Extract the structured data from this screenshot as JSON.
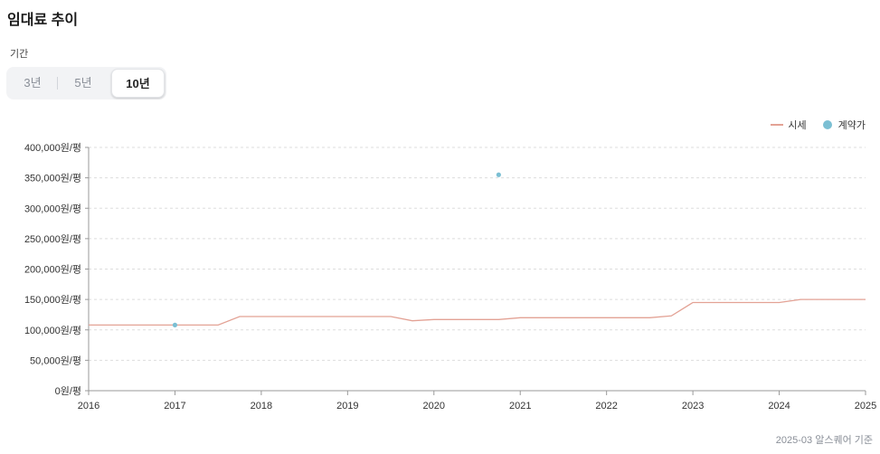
{
  "title": "임대료 추이",
  "period": {
    "label": "기간",
    "options": [
      "3년",
      "5년",
      "10년"
    ],
    "selected": "10년"
  },
  "legend": {
    "market": "시세",
    "contract": "계약가"
  },
  "colors": {
    "market_line": "#e3a295",
    "contract_dot": "#7bbfd3",
    "grid": "#dddddd"
  },
  "footnote": "2025-03 알스퀘어 기준",
  "chart_data": {
    "type": "line",
    "title": "",
    "xlabel": "",
    "ylabel": "",
    "xlim": [
      2016,
      2025
    ],
    "ylim": [
      0,
      400000
    ],
    "x_ticks": [
      "2016",
      "2017",
      "2018",
      "2019",
      "2020",
      "2021",
      "2022",
      "2023",
      "2024",
      "2025"
    ],
    "y_ticks": [
      "0원/평",
      "50,000원/평",
      "100,000원/평",
      "150,000원/평",
      "200,000원/평",
      "250,000원/평",
      "300,000원/평",
      "350,000원/평",
      "400,000원/평"
    ],
    "grid": true,
    "legend_position": "top-right",
    "series": [
      {
        "name": "시세",
        "type": "line",
        "points": [
          [
            2016.0,
            108000
          ],
          [
            2017.5,
            108000
          ],
          [
            2017.75,
            122000
          ],
          [
            2019.5,
            122000
          ],
          [
            2019.75,
            115000
          ],
          [
            2020.0,
            117000
          ],
          [
            2020.75,
            117000
          ],
          [
            2021.0,
            120000
          ],
          [
            2022.5,
            120000
          ],
          [
            2022.75,
            123000
          ],
          [
            2023.0,
            145000
          ],
          [
            2024.0,
            145000
          ],
          [
            2024.25,
            150000
          ],
          [
            2025.0,
            150000
          ]
        ]
      },
      {
        "name": "계약가",
        "type": "scatter",
        "points": [
          [
            2017.0,
            108000
          ],
          [
            2020.75,
            355000
          ]
        ]
      }
    ]
  }
}
